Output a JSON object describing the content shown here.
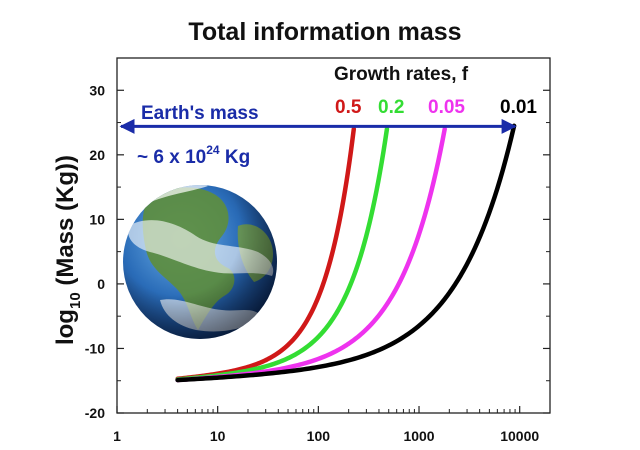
{
  "chart_data": {
    "type": "line",
    "title": "Total information mass",
    "ylabel_main": "log",
    "ylabel_sub": "10",
    "ylabel_rest": " (Mass (Kg))",
    "xscale": "log",
    "xlim": [
      1,
      20000
    ],
    "ylim": [
      -20,
      35
    ],
    "xticks": [
      {
        "value": 1,
        "label": "1"
      },
      {
        "value": 10,
        "label": "10"
      },
      {
        "value": 100,
        "label": "100"
      },
      {
        "value": 1000,
        "label": "1000"
      },
      {
        "value": 10000,
        "label": "10000"
      }
    ],
    "yticks": [
      {
        "value": -20,
        "label": "-20"
      },
      {
        "value": -10,
        "label": "-10"
      },
      {
        "value": 0,
        "label": "0"
      },
      {
        "value": 10,
        "label": "10"
      },
      {
        "value": 20,
        "label": "20"
      },
      {
        "value": 30,
        "label": "30"
      }
    ],
    "legend_title": "Growth rates, f",
    "series": [
      {
        "name": "0.5",
        "color": "#d01818",
        "x0": 4,
        "y0": -14.7,
        "x_end": 225,
        "y_end": 24,
        "shape": 1.0
      },
      {
        "name": "0.2",
        "color": "#33dd33",
        "x0": 4,
        "y0": -14.8,
        "x_end": 480,
        "y_end": 24,
        "shape": 1.0
      },
      {
        "name": "0.05",
        "color": "#ee33ee",
        "x0": 4,
        "y0": -14.9,
        "x_end": 1800,
        "y_end": 24,
        "shape": 1.0
      },
      {
        "name": "0.01",
        "color": "#000000",
        "x0": 4,
        "y0": -14.9,
        "x_end": 8800,
        "y_end": 24.5,
        "shape": 1.0
      }
    ],
    "annotation": {
      "label": "Earth's mass",
      "value_prefix": "~ 6 x 10",
      "value_exp": "24",
      "value_unit": " Kg",
      "y": 24.4,
      "x_from": 1,
      "x_to": 9000,
      "color": "#1a2ca8"
    }
  },
  "image": {
    "subject": "earth-globe-icon"
  }
}
